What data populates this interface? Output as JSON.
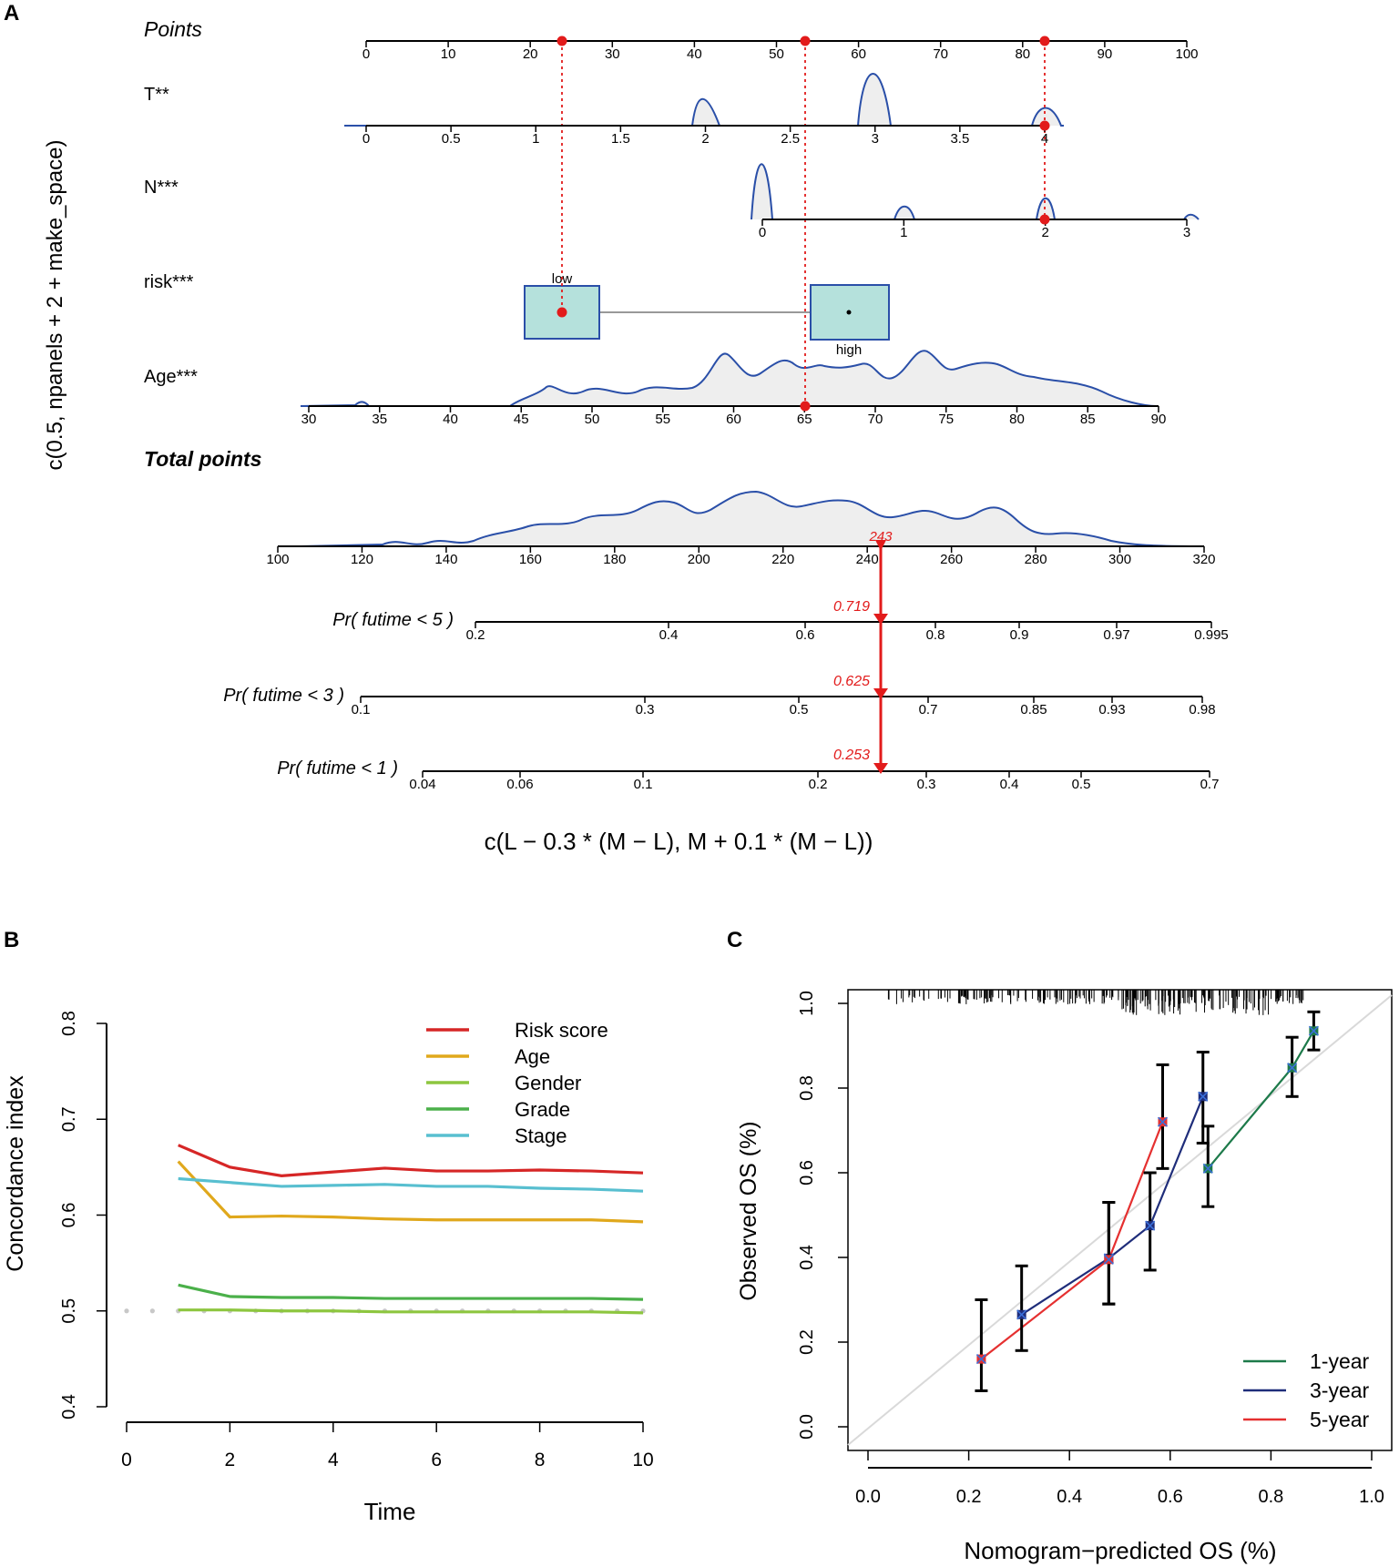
{
  "panels": {
    "a": "A",
    "b": "B",
    "c": "C"
  },
  "chart_data": [
    {
      "type": "nomogram",
      "ylabel": "c(0.5, npanels + 2 + make_space)",
      "xlabel": "c(L − 0.3 * (M − L), M + 0.1 * (M − L))",
      "points": {
        "label": "Points",
        "ticks": [
          "0",
          "10",
          "20",
          "30",
          "40",
          "50",
          "60",
          "70",
          "80",
          "90",
          "100"
        ],
        "selected": [
          24,
          53.5,
          83
        ]
      },
      "variables": [
        {
          "label": "T**",
          "ticks": [
            "0",
            "0.5",
            "1",
            "1.5",
            "2",
            "2.5",
            "3",
            "3.5",
            "4"
          ],
          "selected": 4
        },
        {
          "label": "N***",
          "ticks": [
            "0",
            "1",
            "2",
            "3"
          ],
          "selected": 2
        },
        {
          "label": "risk***",
          "levels": [
            "low",
            "high"
          ],
          "selected": "low"
        },
        {
          "label": "Age***",
          "ticks": [
            "30",
            "35",
            "40",
            "45",
            "50",
            "55",
            "60",
            "65",
            "70",
            "75",
            "80",
            "85",
            "90"
          ],
          "selected": 65
        }
      ],
      "total_points": {
        "label": "Total points",
        "ticks": [
          "100",
          "120",
          "140",
          "160",
          "180",
          "200",
          "220",
          "240",
          "260",
          "280",
          "300",
          "320"
        ],
        "value": "243"
      },
      "probabilities": [
        {
          "label": "Pr( futime < 5 )",
          "ticks": [
            "0.2",
            "0.4",
            "0.6",
            "0.8",
            "0.9",
            "0.97",
            "0.995"
          ],
          "value": "0.719"
        },
        {
          "label": "Pr( futime < 3 )",
          "ticks": [
            "0.1",
            "0.3",
            "0.5",
            "0.7",
            "0.85",
            "0.93",
            "0.98"
          ],
          "value": "0.625"
        },
        {
          "label": "Pr( futime < 1 )",
          "ticks": [
            "0.04",
            "0.06",
            "0.1",
            "0.2",
            "0.3",
            "0.4",
            "0.5",
            "0.7"
          ],
          "value": "0.253"
        }
      ]
    },
    {
      "type": "line",
      "xlabel": "Time",
      "ylabel": "Concordance index",
      "xlim": [
        0,
        10
      ],
      "ylim": [
        0.4,
        0.8
      ],
      "xticks": [
        "0",
        "2",
        "4",
        "6",
        "8",
        "10"
      ],
      "yticks": [
        "0.4",
        "0.5",
        "0.6",
        "0.7",
        "0.8"
      ],
      "x": [
        1,
        2,
        3,
        4,
        5,
        6,
        7,
        8,
        9,
        10
      ],
      "reference": {
        "value": 0.5,
        "color": "#c8c8c8"
      },
      "series": [
        {
          "name": "Risk score",
          "color": "#d62626",
          "values": [
            0.673,
            0.65,
            0.641,
            0.645,
            0.649,
            0.646,
            0.646,
            0.647,
            0.646,
            0.644
          ]
        },
        {
          "name": "Age",
          "color": "#e0a81c",
          "values": [
            0.656,
            0.598,
            0.599,
            0.598,
            0.596,
            0.595,
            0.595,
            0.595,
            0.595,
            0.593
          ]
        },
        {
          "name": "Gender",
          "color": "#8dc63f",
          "values": [
            0.501,
            0.501,
            0.5,
            0.5,
            0.499,
            0.499,
            0.499,
            0.499,
            0.499,
            0.498
          ]
        },
        {
          "name": "Grade",
          "color": "#4bb04a",
          "values": [
            0.527,
            0.515,
            0.514,
            0.514,
            0.513,
            0.513,
            0.513,
            0.513,
            0.513,
            0.512
          ]
        },
        {
          "name": "Stage",
          "color": "#58bfd0",
          "values": [
            0.638,
            0.634,
            0.63,
            0.631,
            0.632,
            0.63,
            0.63,
            0.628,
            0.627,
            0.625
          ]
        }
      ]
    },
    {
      "type": "scatter",
      "xlabel": "Nomogram−predicted OS (%)",
      "ylabel": "Observed OS (%)",
      "xlim": [
        0,
        1
      ],
      "ylim": [
        0,
        1
      ],
      "xticks": [
        "0.0",
        "0.2",
        "0.4",
        "0.6",
        "0.8",
        "1.0"
      ],
      "yticks": [
        "0.0",
        "0.2",
        "0.4",
        "0.6",
        "0.8",
        "1.0"
      ],
      "series": [
        {
          "name": "1-year",
          "color": "#1d7a4a",
          "points": [
            {
              "x": 0.675,
              "y": 0.61,
              "lo": 0.52,
              "hi": 0.71
            },
            {
              "x": 0.842,
              "y": 0.848,
              "lo": 0.78,
              "hi": 0.92
            },
            {
              "x": 0.885,
              "y": 0.935,
              "lo": 0.89,
              "hi": 0.98
            }
          ]
        },
        {
          "name": "3-year",
          "color": "#1f2d7a",
          "points": [
            {
              "x": 0.305,
              "y": 0.265,
              "lo": 0.18,
              "hi": 0.38
            },
            {
              "x": 0.478,
              "y": 0.398,
              "lo": 0.29,
              "hi": 0.53
            },
            {
              "x": 0.56,
              "y": 0.475,
              "lo": 0.37,
              "hi": 0.6
            },
            {
              "x": 0.665,
              "y": 0.78,
              "lo": 0.67,
              "hi": 0.885
            }
          ]
        },
        {
          "name": "5-year",
          "color": "#e53030",
          "points": [
            {
              "x": 0.225,
              "y": 0.16,
              "lo": 0.085,
              "hi": 0.3
            },
            {
              "x": 0.478,
              "y": 0.395,
              "lo": 0.29,
              "hi": 0.53
            },
            {
              "x": 0.585,
              "y": 0.72,
              "lo": 0.61,
              "hi": 0.855
            }
          ]
        }
      ]
    }
  ]
}
